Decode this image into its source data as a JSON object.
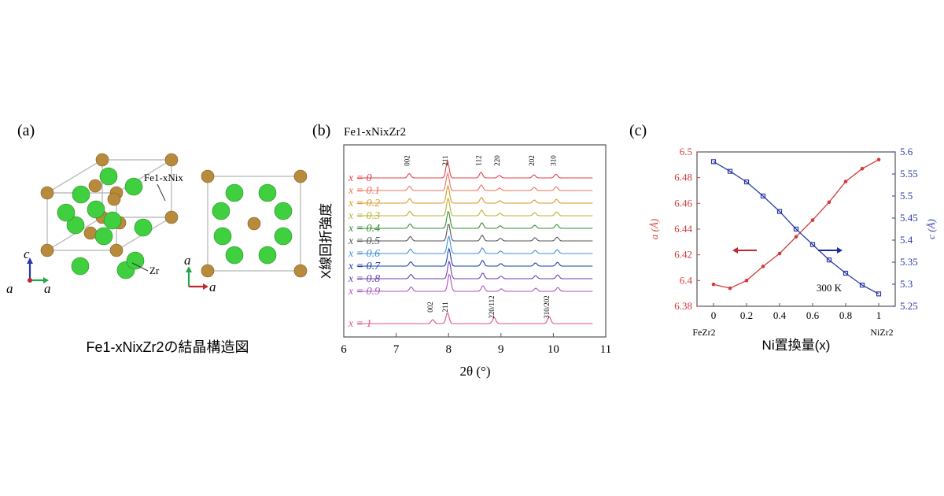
{
  "panel_a": {
    "label": "(a)",
    "site_label_fe": "Fe1-xNix",
    "site_label_zr": "Zr",
    "axis_labels": {
      "c": "c",
      "a1": "a",
      "a2": "a",
      "top_a": "a",
      "right_a": "a"
    },
    "caption": "Fe1-xNixZr2の結晶構造図",
    "colors": {
      "fe_ni_atom": "#b88a3c",
      "zr_atom": "#3fcf3f",
      "cell_edge": "#b8b8b8"
    }
  },
  "panel_b": {
    "label": "(b)",
    "formula": "Fe1-xNixZr2"
  },
  "panel_c": {
    "label": "(c)"
  },
  "chart_data": [
    {
      "type": "line",
      "id": "xrd",
      "xlabel": "2θ (°)",
      "ylabel": "X線回折強度",
      "xlim": [
        6,
        11
      ],
      "xticks": [
        6,
        7,
        8,
        9,
        10,
        11
      ],
      "peaks_x_top": [
        "002",
        "211",
        "112",
        "220",
        "202",
        "310"
      ],
      "peak_positions_top": [
        7.25,
        7.98,
        8.62,
        8.97,
        9.63,
        10.05
      ],
      "peak_labels_bottom": [
        "002",
        "211",
        "220/112",
        "310/202"
      ],
      "peak_positions_bottom": [
        7.7,
        7.98,
        8.87,
        9.92
      ],
      "series": [
        {
          "name": "x = 0",
          "color": "#e0404a"
        },
        {
          "name": "x = 0.1",
          "color": "#e8735a"
        },
        {
          "name": "x = 0.2",
          "color": "#d99a2a"
        },
        {
          "name": "x = 0.3",
          "color": "#b8b02e"
        },
        {
          "name": "x = 0.4",
          "color": "#2f8f2f"
        },
        {
          "name": "x = 0.5",
          "color": "#555555"
        },
        {
          "name": "x = 0.6",
          "color": "#3f8fd8"
        },
        {
          "name": "x = 0.7",
          "color": "#1a3fa8"
        },
        {
          "name": "x = 0.8",
          "color": "#6a3fb0"
        },
        {
          "name": "x = 0.9",
          "color": "#b04fc0"
        },
        {
          "name": "x = 1",
          "color": "#e0508a"
        }
      ]
    },
    {
      "type": "line",
      "id": "lattice",
      "xlabel": "Ni置換量(x)",
      "x_end_labels": [
        "FeZr2",
        "NiZr2"
      ],
      "xticks": [
        0,
        0.2,
        0.4,
        0.6,
        0.8,
        1
      ],
      "xlim": [
        -0.1,
        1.1
      ],
      "ylabel_left": "a (Å)",
      "ylabel_right": "c (Å)",
      "ylim_left": [
        6.38,
        6.5
      ],
      "yticks_left": [
        6.38,
        6.4,
        6.42,
        6.44,
        6.46,
        6.48,
        6.5
      ],
      "ylim_right": [
        5.25,
        5.6
      ],
      "yticks_right": [
        5.25,
        5.3,
        5.35,
        5.4,
        5.45,
        5.5,
        5.55,
        5.6
      ],
      "annotation": "300 K",
      "series": [
        {
          "name": "a",
          "axis": "left",
          "color": "#d23a3a",
          "x": [
            0,
            0.1,
            0.2,
            0.3,
            0.4,
            0.5,
            0.6,
            0.7,
            0.8,
            0.9,
            1.0
          ],
          "values": [
            6.397,
            6.394,
            6.4,
            6.411,
            6.421,
            6.434,
            6.447,
            6.461,
            6.477,
            6.487,
            6.494
          ]
        },
        {
          "name": "c",
          "axis": "right",
          "color": "#2b3aa8",
          "x": [
            0,
            0.1,
            0.2,
            0.3,
            0.4,
            0.5,
            0.6,
            0.7,
            0.8,
            0.9,
            1.0
          ],
          "values": [
            5.578,
            5.556,
            5.532,
            5.5,
            5.465,
            5.425,
            5.39,
            5.355,
            5.325,
            5.298,
            5.278
          ]
        }
      ]
    }
  ]
}
